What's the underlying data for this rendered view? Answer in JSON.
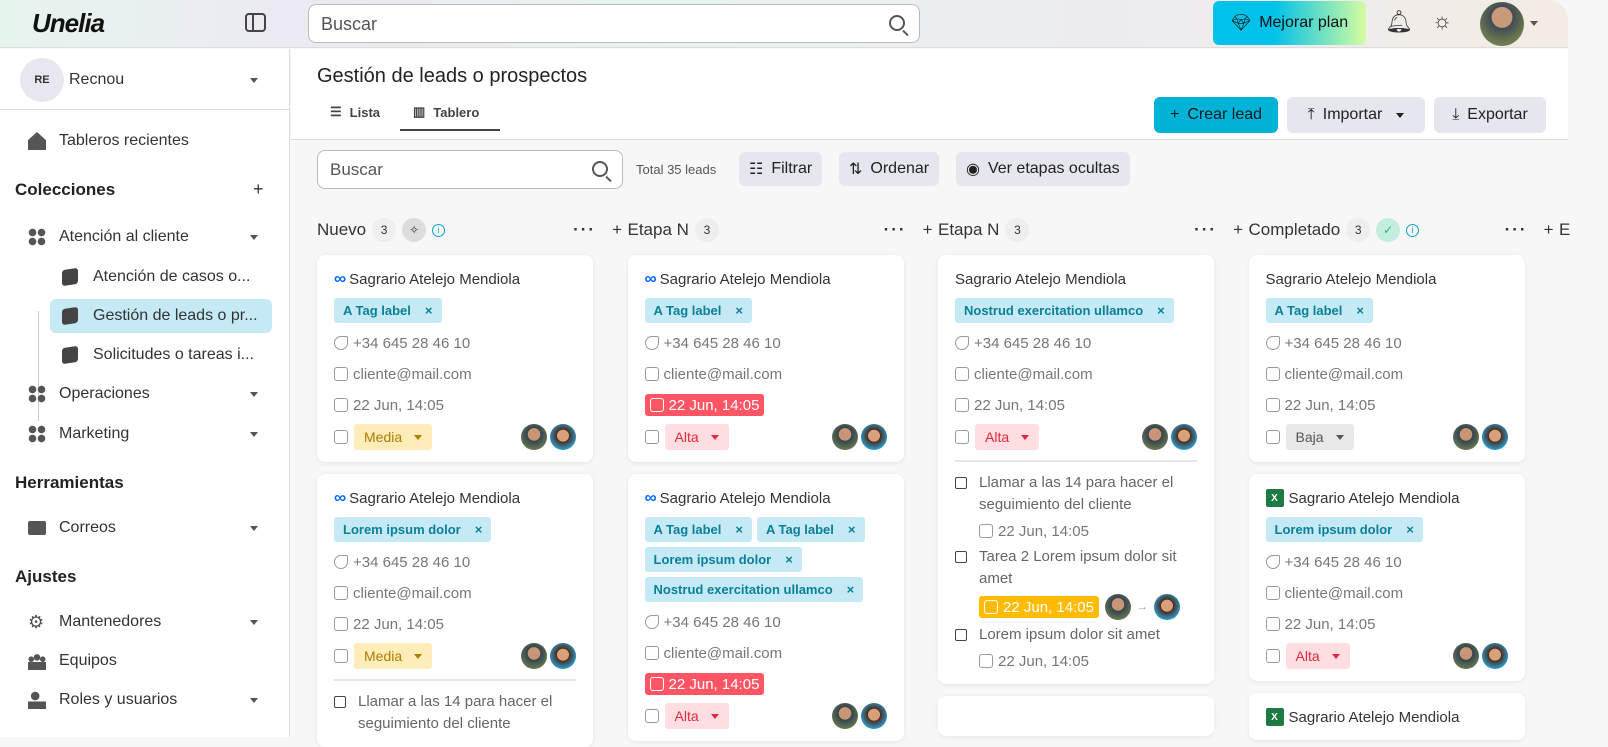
{
  "app": {
    "logo": "Unelia",
    "search_placeholder": "Buscar",
    "upgrade_label": "Mejorar plan"
  },
  "sidebar": {
    "workspace": {
      "initials": "RE",
      "name": "Recnou"
    },
    "recent": "Tableros recientes",
    "collections_title": "Colecciones",
    "collections": [
      {
        "label": "Atención al cliente"
      },
      {
        "label": "Operaciones"
      },
      {
        "label": "Marketing"
      }
    ],
    "boards": [
      {
        "label": "Atención de casos o..."
      },
      {
        "label": "Gestión de leads o pr..."
      },
      {
        "label": "Solicitudes o tareas i..."
      }
    ],
    "tools_title": "Herramientas",
    "tools": [
      {
        "label": "Correos"
      }
    ],
    "settings_title": "Ajustes",
    "settings": [
      {
        "label": "Mantenedores"
      },
      {
        "label": "Equipos"
      },
      {
        "label": "Roles y usuarios"
      }
    ]
  },
  "main": {
    "title": "Gestión de leads o prospectos",
    "tabs": [
      {
        "label": "Lista"
      },
      {
        "label": "Tablero",
        "active": true
      }
    ],
    "actions": {
      "create": "Crear lead",
      "import": "Importar",
      "export": "Exportar"
    },
    "search_placeholder": "Buscar",
    "total": "Total 35 leads",
    "filter": "Filtrar",
    "sort": "Ordenar",
    "hidden": "Ver etapas ocultas"
  },
  "colors": {
    "accent": "#00b3d6",
    "tag_bg": "#c5eaf5",
    "overdue": "#ff5564",
    "warning": "#ffbb00"
  },
  "columns": [
    {
      "title": "Nuevo",
      "count": "3",
      "badge": "sparkle",
      "cards": [
        {
          "source": "meta",
          "name": "Sagrario Atelejo Mendiola",
          "tags": [
            "A Tag label"
          ],
          "phone": "+34 645 28 46 10",
          "email": "cliente@mail.com",
          "date": "22 Jun, 14:05",
          "date_state": "normal",
          "priority": "Media",
          "level": "media"
        },
        {
          "source": "meta",
          "name": "Sagrario Atelejo Mendiola",
          "tags": [
            "Lorem ipsum dolor"
          ],
          "phone": "+34 645 28 46 10",
          "email": "cliente@mail.com",
          "date": "22 Jun, 14:05",
          "date_state": "normal",
          "priority": "Media",
          "level": "media",
          "tasks": [
            {
              "text": "Llamar a las 14 para hacer el seguimiento del cliente"
            }
          ]
        }
      ]
    },
    {
      "title": "Etapa N",
      "count": "3",
      "cards": [
        {
          "source": "meta",
          "name": "Sagrario Atelejo Mendiola",
          "tags": [
            "A Tag label"
          ],
          "phone": "+34 645 28 46 10",
          "email": "cliente@mail.com",
          "date": "22 Jun, 14:05",
          "date_state": "red",
          "priority": "Alta",
          "level": "alta"
        },
        {
          "source": "meta",
          "name": "Sagrario Atelejo Mendiola",
          "tags": [
            "A Tag label",
            "A Tag label",
            "Lorem ipsum dolor",
            "Nostrud exercitation ullamco"
          ],
          "phone": "+34 645 28 46 10",
          "email": "cliente@mail.com",
          "date": "22 Jun, 14:05",
          "date_state": "red",
          "priority": "Alta",
          "level": "alta"
        }
      ]
    },
    {
      "title": "Etapa N",
      "count": "3",
      "cards": [
        {
          "source": "",
          "name": "Sagrario Atelejo Mendiola",
          "tags": [
            "Nostrud exercitation ullamco"
          ],
          "phone": "+34 645 28 46 10",
          "email": "cliente@mail.com",
          "date": "22 Jun, 14:05",
          "date_state": "normal",
          "priority": "Alta",
          "level": "alta",
          "tasks": [
            {
              "text": "Llamar a las 14 para hacer el seguimiento del cliente",
              "date": "22 Jun, 14:05",
              "date_state": "normal"
            },
            {
              "text": "Tarea 2 Lorem ipsum dolor sit amet",
              "date": "22 Jun, 14:05",
              "date_state": "yellow",
              "assign": true
            },
            {
              "text": "Lorem ipsum dolor sit amet",
              "date": "22 Jun, 14:05",
              "date_state": "normal"
            }
          ]
        },
        {
          "source": "",
          "name": "",
          "tags": []
        }
      ]
    },
    {
      "title": "Completado",
      "count": "3",
      "badge": "check",
      "cards": [
        {
          "source": "",
          "name": "Sagrario Atelejo Mendiola",
          "tags": [
            "A Tag label"
          ],
          "phone": "+34 645 28 46 10",
          "email": "cliente@mail.com",
          "date": "22 Jun, 14:05",
          "date_state": "normal",
          "priority": "Baja",
          "level": "baja"
        },
        {
          "source": "excel",
          "name": "Sagrario Atelejo Mendiola",
          "tags": [
            "Lorem ipsum dolor"
          ],
          "phone": "+34 645 28 46 10",
          "email": "cliente@mail.com",
          "date": "22 Jun, 14:05",
          "date_state": "normal",
          "priority": "Alta",
          "level": "alta"
        },
        {
          "source": "excel",
          "name": "Sagrario Atelejo Mendiola",
          "tags": []
        }
      ]
    },
    {
      "title": "E",
      "count": "",
      "cards": []
    }
  ]
}
